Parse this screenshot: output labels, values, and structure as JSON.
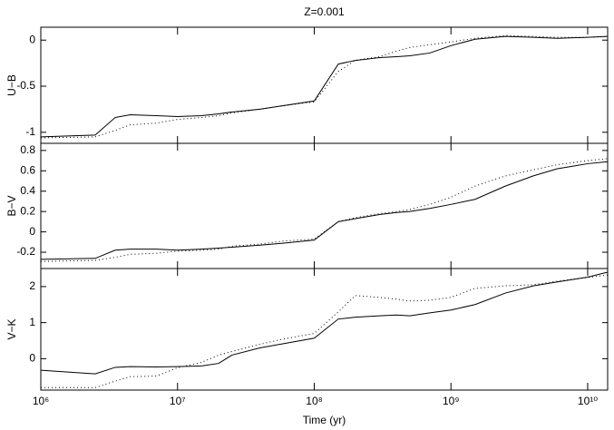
{
  "chart_data": [
    {
      "type": "line",
      "title": "Z=0.001",
      "ylabel": "U−B",
      "xscale": "log",
      "x": [
        1000000,
        2500000,
        3500000,
        4500000,
        7000000,
        10000000,
        15000000,
        20000000,
        25000000,
        40000000,
        60000000,
        100000000,
        150000000,
        200000000,
        300000000,
        400000000,
        500000000,
        700000000,
        1000000000,
        1500000000,
        2500000000,
        4000000000,
        6000000000,
        10000000000,
        14000000000
      ],
      "xlim": [
        1000000,
        14000000000
      ],
      "xticks": [
        1000000,
        10000000,
        100000000,
        1000000000,
        10000000000
      ],
      "ylim": [
        -1.12,
        0.14
      ],
      "yticks": [
        -1,
        -0.5,
        0
      ],
      "series": [
        {
          "color": "#000000",
          "style": "solid",
          "values": [
            -1.05,
            -1.03,
            -0.84,
            -0.81,
            -0.82,
            -0.83,
            -0.82,
            -0.8,
            -0.78,
            -0.75,
            -0.71,
            -0.66,
            -0.26,
            -0.22,
            -0.19,
            -0.18,
            -0.17,
            -0.14,
            -0.06,
            0.01,
            0.04,
            0.03,
            0.02,
            0.03,
            0.04
          ]
        },
        {
          "color": "#000000",
          "style": "dotted",
          "values": [
            -1.06,
            -1.05,
            -0.98,
            -0.92,
            -0.9,
            -0.86,
            -0.84,
            -0.82,
            -0.79,
            -0.75,
            -0.71,
            -0.67,
            -0.34,
            -0.22,
            -0.18,
            -0.12,
            -0.08,
            -0.05,
            -0.02,
            0.02,
            0.05,
            0.04,
            0.03,
            0.03,
            0.04
          ]
        }
      ]
    },
    {
      "type": "line",
      "ylabel": "B−V",
      "xscale": "log",
      "x": [
        1000000,
        2500000,
        3500000,
        4500000,
        7000000,
        10000000,
        15000000,
        20000000,
        25000000,
        40000000,
        60000000,
        100000000,
        150000000,
        200000000,
        300000000,
        400000000,
        500000000,
        700000000,
        1000000000,
        1500000000,
        2500000000,
        4000000000,
        6000000000,
        10000000000,
        14000000000
      ],
      "xlim": [
        1000000,
        14000000000
      ],
      "xticks": [
        1000000,
        10000000,
        100000000,
        1000000000,
        10000000000
      ],
      "ylim": [
        -0.36,
        0.87
      ],
      "yticks": [
        -0.2,
        0,
        0.2,
        0.4,
        0.6,
        0.8
      ],
      "series": [
        {
          "color": "#000000",
          "style": "solid",
          "values": [
            -0.27,
            -0.26,
            -0.18,
            -0.17,
            -0.17,
            -0.18,
            -0.17,
            -0.16,
            -0.15,
            -0.13,
            -0.11,
            -0.08,
            0.1,
            0.13,
            0.17,
            0.19,
            0.2,
            0.23,
            0.27,
            0.32,
            0.45,
            0.55,
            0.62,
            0.67,
            0.69
          ]
        },
        {
          "color": "#000000",
          "style": "dotted",
          "values": [
            -0.29,
            -0.28,
            -0.25,
            -0.22,
            -0.21,
            -0.19,
            -0.18,
            -0.17,
            -0.14,
            -0.12,
            -0.09,
            -0.07,
            0.1,
            0.14,
            0.18,
            0.2,
            0.22,
            0.27,
            0.34,
            0.45,
            0.55,
            0.61,
            0.66,
            0.7,
            0.72
          ]
        }
      ]
    },
    {
      "type": "line",
      "ylabel": "V−K",
      "xlabel": "Time (yr)",
      "xscale": "log",
      "x": [
        1000000,
        2500000,
        3500000,
        4500000,
        7000000,
        10000000,
        15000000,
        20000000,
        25000000,
        40000000,
        60000000,
        100000000,
        150000000,
        200000000,
        300000000,
        400000000,
        500000000,
        700000000,
        1000000000,
        1500000000,
        2500000000,
        4000000000,
        6000000000,
        10000000000,
        14000000000
      ],
      "xlim": [
        1000000,
        14000000000
      ],
      "xticks": [
        {
          "value": 1000000,
          "label": "10⁶"
        },
        {
          "value": 10000000,
          "label": "10⁷"
        },
        {
          "value": 100000000,
          "label": "10⁸"
        },
        {
          "value": 1000000000,
          "label": "10⁹"
        },
        {
          "value": 10000000000,
          "label": "10¹⁰"
        }
      ],
      "ylim": [
        -0.87,
        2.5
      ],
      "yticks": [
        0,
        1,
        2
      ],
      "series": [
        {
          "color": "#000000",
          "style": "solid",
          "values": [
            -0.32,
            -0.42,
            -0.24,
            -0.22,
            -0.23,
            -0.22,
            -0.2,
            -0.13,
            0.1,
            0.3,
            0.42,
            0.57,
            1.1,
            1.15,
            1.19,
            1.21,
            1.19,
            1.27,
            1.35,
            1.5,
            1.82,
            2.02,
            2.13,
            2.26,
            2.4
          ]
        },
        {
          "color": "#000000",
          "style": "dotted",
          "values": [
            -0.8,
            -0.8,
            -0.62,
            -0.5,
            -0.48,
            -0.25,
            -0.1,
            0.1,
            0.2,
            0.4,
            0.55,
            0.7,
            1.3,
            1.75,
            1.7,
            1.65,
            1.6,
            1.62,
            1.7,
            1.95,
            2.02,
            2.05,
            2.15,
            2.25,
            2.32
          ]
        }
      ]
    }
  ]
}
